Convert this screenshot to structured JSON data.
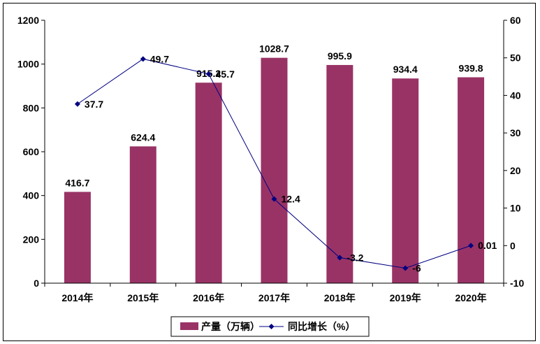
{
  "chart_data": {
    "type": "bar",
    "categories": [
      "2014年",
      "2015年",
      "2016年",
      "2017年",
      "2018年",
      "2019年",
      "2020年"
    ],
    "series": [
      {
        "name": "产量（万辆）",
        "type": "bar",
        "axis": "left",
        "values": [
          416.7,
          624.4,
          915.2,
          1028.7,
          995.9,
          934.4,
          939.8
        ],
        "labels": [
          "416.7",
          "624.4",
          "915.2",
          "1028.7",
          "995.9",
          "934.4",
          "939.8"
        ]
      },
      {
        "name": "同比增长（%）",
        "type": "line",
        "axis": "right",
        "values": [
          37.7,
          49.7,
          45.7,
          12.4,
          -3.2,
          -6,
          0.01
        ],
        "labels": [
          "37.7",
          "49.7",
          "45.7",
          "12.4",
          "-3.2",
          "-6",
          "0.01"
        ]
      }
    ],
    "y_left": {
      "ylim": [
        0,
        1200
      ],
      "ticks": [
        "0",
        "200",
        "400",
        "600",
        "800",
        "1000",
        "1200"
      ]
    },
    "y_right": {
      "ylim": [
        -10,
        60
      ],
      "ticks": [
        "-10",
        "0",
        "10",
        "20",
        "30",
        "40",
        "50",
        "60"
      ]
    },
    "grid": false,
    "legend": "bottom",
    "colors": {
      "bar": "#993366",
      "line": "#000080"
    }
  }
}
